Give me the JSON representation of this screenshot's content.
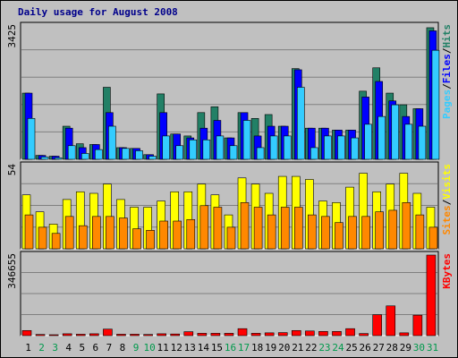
{
  "chart_data": {
    "type": "bar",
    "title": "Daily usage for August 2008",
    "categories": [
      "1",
      "2",
      "3",
      "4",
      "5",
      "6",
      "7",
      "8",
      "9",
      "10",
      "11",
      "12",
      "13",
      "14",
      "15",
      "16",
      "17",
      "18",
      "19",
      "20",
      "21",
      "22",
      "23",
      "24",
      "25",
      "26",
      "27",
      "28",
      "29",
      "30",
      "31"
    ],
    "weekend_days": [
      "2",
      "3",
      "9",
      "10",
      "16",
      "17",
      "23",
      "24",
      "30",
      "31"
    ],
    "colors": {
      "hits": "#228066",
      "files": "#0000ff",
      "pages": "#33ccff",
      "visits": "#ffff00",
      "sites": "#ff8800",
      "kbytes": "#ff0000",
      "weekday_label": "#000000",
      "weekend_label": "#00994c",
      "panel_bg": "#c0c0c0",
      "border": "#808080"
    },
    "panels": [
      {
        "ylabel_parts": [
          {
            "text": "Pages",
            "color": "#33ccff"
          },
          {
            "text": "/",
            "color": "#000000"
          },
          {
            "text": "Files",
            "color": "#0000ff"
          },
          {
            "text": "/",
            "color": "#000000"
          },
          {
            "text": "Hits",
            "color": "#228066"
          }
        ],
        "ymax_label": "3425",
        "ylim": [
          0,
          3425
        ],
        "series": [
          {
            "name": "Hits",
            "color": "#228066",
            "values": [
              1700,
              100,
              80,
              850,
              400,
              380,
              1850,
              300,
              280,
              120,
              1680,
              650,
              600,
              1200,
              1350,
              550,
              1200,
              1050,
              1150,
              850,
              2330,
              800,
              800,
              750,
              750,
              1750,
              2350,
              1700,
              1400,
              1300,
              3380
            ]
          },
          {
            "name": "Files",
            "color": "#0000ff",
            "values": [
              1700,
              100,
              80,
              800,
              300,
              380,
              1200,
              300,
              280,
              120,
              1200,
              650,
              550,
              800,
              1000,
              550,
              1200,
              600,
              850,
              850,
              2300,
              800,
              800,
              750,
              750,
              1600,
              2000,
              1500,
              1100,
              1300,
              3300
            ]
          },
          {
            "name": "Pages",
            "color": "#33ccff",
            "values": [
              1050,
              60,
              40,
              350,
              150,
              250,
              850,
              280,
              220,
              80,
              600,
              350,
              500,
              500,
              600,
              350,
              1000,
              300,
              600,
              600,
              1850,
              300,
              600,
              600,
              550,
              900,
              1100,
              1400,
              900,
              850,
              2800
            ]
          }
        ]
      },
      {
        "ylabel_parts": [
          {
            "text": "Sites",
            "color": "#ff8800"
          },
          {
            "text": "/",
            "color": "#000000"
          },
          {
            "text": "Visits",
            "color": "#ffff00"
          }
        ],
        "ymax_label": "54",
        "ylim": [
          0,
          54
        ],
        "series": [
          {
            "name": "Visits",
            "color": "#ffff00",
            "values": [
              35,
              24,
              16,
              32,
              37,
              36,
              42,
              32,
              27,
              27,
              31,
              37,
              37,
              42,
              35,
              22,
              46,
              42,
              36,
              47,
              47,
              45,
              31,
              30,
              40,
              49,
              37,
              42,
              49,
              36,
              27
            ]
          },
          {
            "name": "Sites",
            "color": "#ff8800",
            "values": [
              22,
              14,
              10,
              21,
              15,
              21,
              21,
              20,
              13,
              12,
              18,
              18,
              19,
              28,
              27,
              14,
              30,
              27,
              22,
              27,
              27,
              22,
              21,
              17,
              21,
              21,
              24,
              25,
              30,
              22,
              14
            ]
          }
        ]
      },
      {
        "ylabel_parts": [
          {
            "text": "KBytes",
            "color": "#ff0000"
          }
        ],
        "ymax_label": "346655",
        "ylim": [
          0,
          346655
        ],
        "series": [
          {
            "name": "KBytes",
            "color": "#ff0000",
            "values": [
              22000,
              5000,
              3000,
              8000,
              6000,
              8000,
              28000,
              6000,
              6000,
              5000,
              8000,
              7000,
              17000,
              10000,
              10000,
              10000,
              30000,
              10000,
              12000,
              13000,
              22000,
              20000,
              18000,
              18000,
              30000,
              9000,
              90000,
              128000,
              12000,
              88000,
              346655
            ]
          }
        ]
      }
    ]
  }
}
